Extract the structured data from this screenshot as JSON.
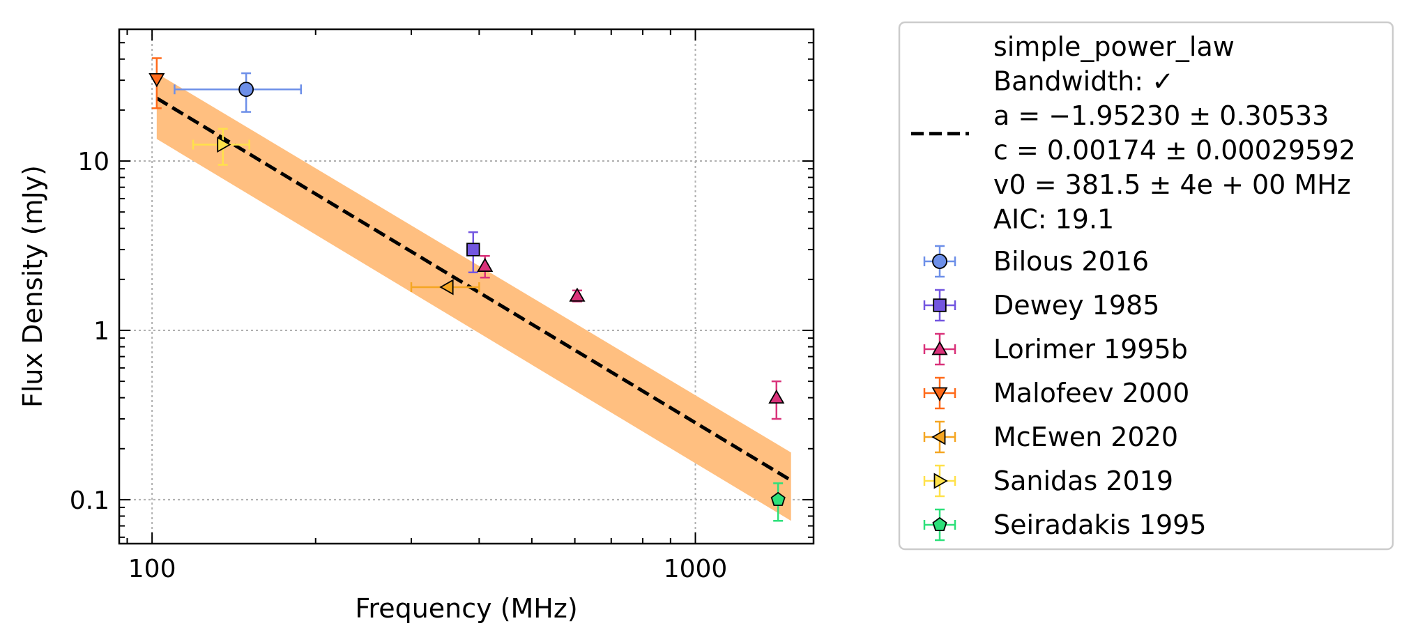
{
  "chart_data": {
    "type": "scatter",
    "xlabel": "Frequency (MHz)",
    "ylabel": "Flux Density (mJy)",
    "xscale": "log",
    "yscale": "log",
    "xlim": [
      87,
      1650
    ],
    "ylim": [
      0.055,
      60
    ],
    "xticks": [
      {
        "value": 100,
        "label": "100"
      },
      {
        "value": 1000,
        "label": "1000"
      }
    ],
    "yticks": [
      {
        "value": 0.1,
        "label": "0.1"
      },
      {
        "value": 1,
        "label": "1"
      },
      {
        "value": 10,
        "label": "10"
      }
    ],
    "grid": true,
    "legend_position": "outside-right",
    "fit": {
      "legend_lines": [
        "simple_power_law",
        "Bandwidth: ✓",
        "a = −1.95230 ± 0.30533",
        "c = 0.00174 ± 0.00029592",
        "v0 = 381.5 ± 4e + 00 MHz",
        "AIC: 19.1"
      ],
      "line_color": "#000000",
      "band_color": "#ffbf80",
      "x": [
        102,
        1500
      ],
      "y": [
        23.5,
        0.13
      ],
      "band_upper": [
        33,
        0.19
      ],
      "band_lower": [
        13.5,
        0.075
      ]
    },
    "series": [
      {
        "name": "Bilous 2016",
        "color": "#6d8fe8",
        "marker": "circle",
        "points": [
          {
            "x": 149,
            "y": 26.5,
            "xlo": 110,
            "xhi": 188,
            "ylo": 19.5,
            "yhi": 33
          }
        ]
      },
      {
        "name": "Dewey 1985",
        "color": "#7356e0",
        "marker": "square",
        "points": [
          {
            "x": 390,
            "y": 3.0,
            "ylo": 2.2,
            "yhi": 3.8
          }
        ]
      },
      {
        "name": "Lorimer 1995b",
        "color": "#d9327a",
        "marker": "triangle-up",
        "points": [
          {
            "x": 410,
            "y": 2.4,
            "ylo": 2.05,
            "yhi": 2.75
          },
          {
            "x": 606,
            "y": 1.6,
            "ylo": 1.48,
            "yhi": 1.72
          },
          {
            "x": 1410,
            "y": 0.4,
            "ylo": 0.3,
            "yhi": 0.5
          }
        ]
      },
      {
        "name": "Malofeev 2000",
        "color": "#ff6a1a",
        "marker": "triangle-down",
        "points": [
          {
            "x": 102,
            "y": 30.5,
            "ylo": 20.5,
            "yhi": 40.5
          }
        ]
      },
      {
        "name": "McEwen 2020",
        "color": "#f5a623",
        "marker": "triangle-left",
        "points": [
          {
            "x": 350,
            "y": 1.8,
            "xlo": 300,
            "xhi": 400,
            "ylo": 1.8,
            "yhi": 1.8
          }
        ]
      },
      {
        "name": "Sanidas 2019",
        "color": "#ffe14a",
        "marker": "triangle-right",
        "points": [
          {
            "x": 135,
            "y": 12.5,
            "xlo": 119,
            "xhi": 151,
            "ylo": 9.5,
            "yhi": 15.5
          }
        ]
      },
      {
        "name": "Seiradakis 1995",
        "color": "#2de07a",
        "marker": "pentagon",
        "points": [
          {
            "x": 1420,
            "y": 0.1,
            "ylo": 0.075,
            "yhi": 0.125
          }
        ]
      }
    ]
  }
}
